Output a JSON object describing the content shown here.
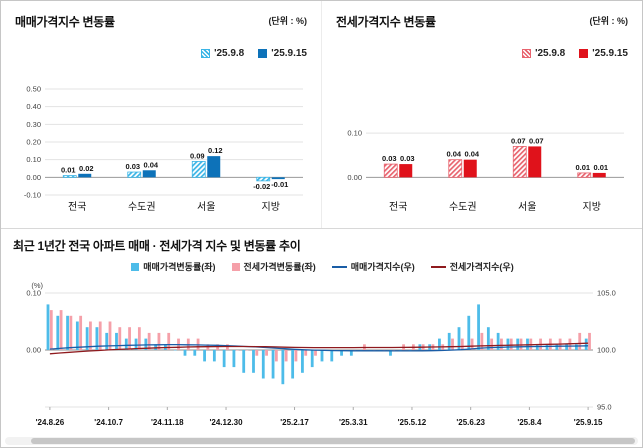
{
  "chart_data": [
    {
      "id": "sales-bar",
      "type": "bar",
      "title": "매매가격지수 변동률",
      "unit": "(단위 : %)",
      "categories": [
        "전국",
        "수도권",
        "서울",
        "지방"
      ],
      "series": [
        {
          "name": "'25.9.8",
          "color": "#3ab5e6",
          "hatch": true,
          "values": [
            0.01,
            0.03,
            0.09,
            -0.02
          ]
        },
        {
          "name": "'25.9.15",
          "color": "#0d72b9",
          "hatch": false,
          "values": [
            0.02,
            0.04,
            0.12,
            -0.01
          ]
        }
      ],
      "yticks": [
        0.5,
        0.4,
        0.3,
        0.2,
        0.1,
        0.0,
        -0.1
      ],
      "ylim": [
        -0.1,
        0.5
      ],
      "grid": true,
      "legend_position": "top-right",
      "value_labels": true
    },
    {
      "id": "jeonse-bar",
      "type": "bar",
      "title": "전세가격지수 변동률",
      "unit": "(단위 : %)",
      "categories": [
        "전국",
        "수도권",
        "서울",
        "지방"
      ],
      "series": [
        {
          "name": "'25.9.8",
          "color": "#e8636e",
          "hatch": true,
          "values": [
            0.03,
            0.04,
            0.07,
            0.01
          ]
        },
        {
          "name": "'25.9.15",
          "color": "#e0121b",
          "hatch": false,
          "values": [
            0.03,
            0.04,
            0.07,
            0.01
          ]
        }
      ],
      "yticks": [
        0.1,
        0.0
      ],
      "ylim": [
        -0.04,
        0.2
      ],
      "grid": true,
      "legend_position": "top-right",
      "value_labels": true
    },
    {
      "id": "trend-combo",
      "type": "combo",
      "title": "최근 1년간 전국 아파트 매매 · 전세가격 지수 및 변동률 추이",
      "left_unit": "(%)",
      "x_tick_labels": [
        "'24.8.26",
        "'24.10.7",
        "'24.11.18",
        "'24.12.30",
        "'25.2.17",
        "'25.3.31",
        "'25.5.12",
        "'25.6.23",
        "'25.8.4",
        "'25.9.15"
      ],
      "x_tick_indices": [
        0,
        6,
        12,
        18,
        25,
        31,
        37,
        43,
        49,
        55
      ],
      "left_ylim": [
        -0.1,
        0.1
      ],
      "left_ticks": [
        0.1,
        0.0
      ],
      "right_ylim": [
        95.0,
        105.0
      ],
      "right_ticks": [
        105.0,
        100.0,
        95.0
      ],
      "legend_position": "top-center",
      "bar_series": [
        {
          "name": "매매가격변동률(좌)",
          "axis": "left",
          "color": "#4dbce9",
          "values": [
            0.08,
            0.06,
            0.06,
            0.05,
            0.04,
            0.04,
            0.03,
            0.03,
            0.02,
            0.02,
            0.02,
            0.01,
            0.01,
            0.0,
            -0.01,
            -0.01,
            -0.02,
            -0.02,
            -0.03,
            -0.03,
            -0.04,
            -0.04,
            -0.05,
            -0.05,
            -0.06,
            -0.05,
            -0.04,
            -0.03,
            -0.02,
            -0.02,
            -0.01,
            -0.01,
            0.0,
            0.0,
            0.0,
            -0.01,
            0.0,
            0.0,
            0.01,
            0.01,
            0.02,
            0.03,
            0.04,
            0.06,
            0.08,
            0.04,
            0.03,
            0.02,
            0.02,
            0.02,
            0.01,
            0.01,
            0.01,
            0.01,
            0.01,
            0.02
          ]
        },
        {
          "name": "전세가격변동률(좌)",
          "axis": "left",
          "color": "#f5a0a9",
          "values": [
            0.07,
            0.07,
            0.06,
            0.06,
            0.05,
            0.05,
            0.05,
            0.04,
            0.04,
            0.04,
            0.03,
            0.03,
            0.03,
            0.02,
            0.02,
            0.02,
            0.01,
            0.01,
            0.01,
            0.0,
            0.0,
            -0.01,
            -0.01,
            -0.02,
            -0.02,
            -0.02,
            -0.01,
            -0.01,
            0.0,
            0.0,
            0.0,
            0.0,
            0.01,
            0.0,
            0.0,
            0.0,
            0.01,
            0.01,
            0.01,
            0.01,
            0.01,
            0.02,
            0.02,
            0.02,
            0.03,
            0.02,
            0.02,
            0.02,
            0.02,
            0.02,
            0.02,
            0.02,
            0.02,
            0.02,
            0.03,
            0.03
          ]
        }
      ],
      "line_series": [
        {
          "name": "매매가격지수(우)",
          "axis": "right",
          "color": "#1a5da6",
          "values": [
            100.08,
            100.14,
            100.2,
            100.25,
            100.29,
            100.33,
            100.36,
            100.39,
            100.41,
            100.43,
            100.45,
            100.46,
            100.47,
            100.47,
            100.46,
            100.45,
            100.43,
            100.41,
            100.38,
            100.35,
            100.31,
            100.27,
            100.22,
            100.17,
            100.11,
            100.06,
            100.02,
            99.99,
            99.97,
            99.95,
            99.94,
            99.93,
            99.93,
            99.93,
            99.93,
            99.92,
            99.92,
            99.92,
            99.93,
            99.94,
            99.96,
            99.99,
            100.03,
            100.09,
            100.17,
            100.21,
            100.24,
            100.26,
            100.28,
            100.3,
            100.31,
            100.32,
            100.33,
            100.34,
            100.35,
            100.37
          ]
        },
        {
          "name": "전세가격지수(우)",
          "axis": "right",
          "color": "#8f1a1e",
          "values": [
            99.67,
            99.74,
            99.8,
            99.86,
            99.91,
            99.96,
            100.01,
            100.05,
            100.09,
            100.13,
            100.16,
            100.19,
            100.22,
            100.24,
            100.26,
            100.28,
            100.29,
            100.3,
            100.31,
            100.31,
            100.31,
            100.3,
            100.29,
            100.27,
            100.25,
            100.23,
            100.22,
            100.21,
            100.21,
            100.21,
            100.21,
            100.21,
            100.22,
            100.22,
            100.22,
            100.22,
            100.23,
            100.24,
            100.25,
            100.26,
            100.27,
            100.29,
            100.31,
            100.33,
            100.36,
            100.38,
            100.4,
            100.42,
            100.44,
            100.46,
            100.48,
            100.5,
            100.52,
            100.54,
            100.57,
            100.6
          ]
        }
      ]
    }
  ]
}
